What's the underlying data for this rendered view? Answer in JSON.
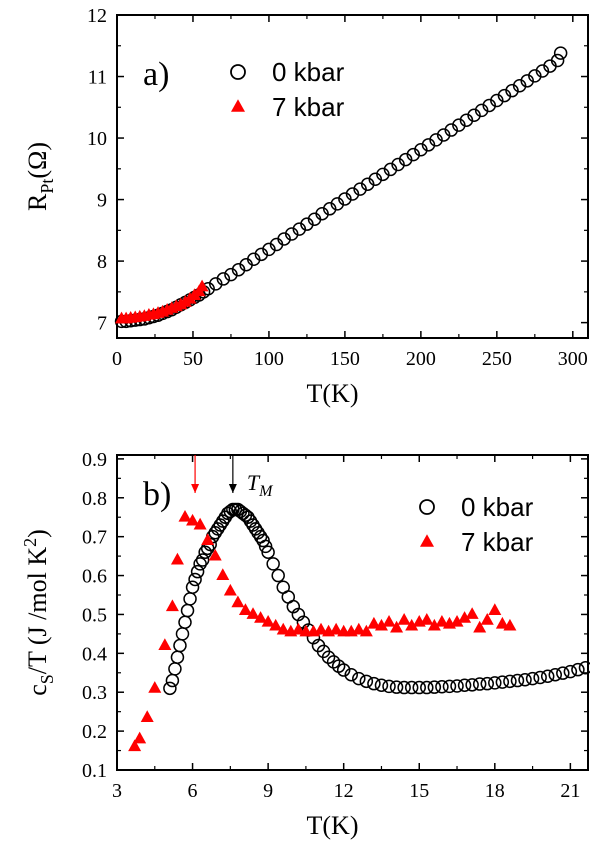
{
  "colors": {
    "black": "#000000",
    "red": "#ff0000"
  },
  "chart_data": [
    {
      "type": "scatter",
      "panel_label": "a)",
      "xlabel": "T(K)",
      "ylabel": {
        "main": "R",
        "sub": "Pt",
        "unit": "(Ω)"
      },
      "xlim": [
        0,
        310
      ],
      "ylim": [
        6.75,
        12
      ],
      "xticks": [
        0,
        50,
        100,
        150,
        200,
        250,
        300
      ],
      "yticks": [
        7,
        8,
        9,
        10,
        11,
        12
      ],
      "legend_placement": "top-left",
      "series": [
        {
          "name": "0 kbar",
          "marker": "circle",
          "color": "#000000",
          "points": [
            [
              3,
              7.02
            ],
            [
              6,
              7.02
            ],
            [
              9,
              7.03
            ],
            [
              12,
              7.04
            ],
            [
              15,
              7.05
            ],
            [
              18,
              7.06
            ],
            [
              21,
              7.08
            ],
            [
              24,
              7.1
            ],
            [
              27,
              7.12
            ],
            [
              30,
              7.15
            ],
            [
              33,
              7.18
            ],
            [
              36,
              7.21
            ],
            [
              39,
              7.25
            ],
            [
              42,
              7.29
            ],
            [
              45,
              7.33
            ],
            [
              48,
              7.37
            ],
            [
              51,
              7.41
            ],
            [
              54,
              7.45
            ],
            [
              57,
              7.5
            ],
            [
              60,
              7.55
            ],
            [
              65,
              7.63
            ],
            [
              70,
              7.71
            ],
            [
              75,
              7.78
            ],
            [
              80,
              7.86
            ],
            [
              85,
              7.94
            ],
            [
              90,
              8.03
            ],
            [
              95,
              8.11
            ],
            [
              100,
              8.19
            ],
            [
              105,
              8.27
            ],
            [
              110,
              8.36
            ],
            [
              115,
              8.44
            ],
            [
              120,
              8.52
            ],
            [
              125,
              8.6
            ],
            [
              130,
              8.68
            ],
            [
              135,
              8.77
            ],
            [
              140,
              8.85
            ],
            [
              145,
              8.93
            ],
            [
              150,
              9.01
            ],
            [
              155,
              9.09
            ],
            [
              160,
              9.17
            ],
            [
              165,
              9.25
            ],
            [
              170,
              9.33
            ],
            [
              175,
              9.41
            ],
            [
              180,
              9.49
            ],
            [
              185,
              9.57
            ],
            [
              190,
              9.65
            ],
            [
              195,
              9.73
            ],
            [
              200,
              9.81
            ],
            [
              205,
              9.89
            ],
            [
              210,
              9.97
            ],
            [
              215,
              10.05
            ],
            [
              220,
              10.13
            ],
            [
              225,
              10.21
            ],
            [
              230,
              10.29
            ],
            [
              235,
              10.37
            ],
            [
              240,
              10.45
            ],
            [
              245,
              10.53
            ],
            [
              250,
              10.61
            ],
            [
              255,
              10.69
            ],
            [
              260,
              10.77
            ],
            [
              265,
              10.85
            ],
            [
              270,
              10.93
            ],
            [
              275,
              11.01
            ],
            [
              280,
              11.09
            ],
            [
              285,
              11.17
            ],
            [
              290,
              11.26
            ],
            [
              292,
              11.38
            ]
          ]
        },
        {
          "name": "7 kbar",
          "marker": "triangle",
          "color": "#ff0000",
          "points": [
            [
              3,
              7.06
            ],
            [
              6,
              7.06
            ],
            [
              9,
              7.07
            ],
            [
              12,
              7.08
            ],
            [
              15,
              7.09
            ],
            [
              18,
              7.1
            ],
            [
              21,
              7.12
            ],
            [
              24,
              7.13
            ],
            [
              27,
              7.15
            ],
            [
              30,
              7.17
            ],
            [
              33,
              7.2
            ],
            [
              36,
              7.23
            ],
            [
              39,
              7.26
            ],
            [
              42,
              7.29
            ],
            [
              45,
              7.33
            ],
            [
              48,
              7.38
            ],
            [
              51,
              7.44
            ],
            [
              54,
              7.5
            ],
            [
              56,
              7.58
            ]
          ]
        }
      ]
    },
    {
      "type": "scatter",
      "panel_label": "b)",
      "xlabel": "T(K)",
      "ylabel": {
        "main": "c",
        "sub": "S",
        "unit": "/T (J /mol K",
        "sup": "2",
        "close": ")"
      },
      "xlim": [
        3,
        21.7
      ],
      "ylim": [
        0.1,
        0.91
      ],
      "xticks": [
        3,
        6,
        9,
        12,
        15,
        18,
        21
      ],
      "yticks": [
        0.1,
        0.2,
        0.3,
        0.4,
        0.5,
        0.6,
        0.7,
        0.8,
        0.9
      ],
      "legend_placement": "top-right",
      "annotations": [
        {
          "text": "T",
          "sub": "M",
          "x": 7.6,
          "color": "#000000"
        },
        {
          "text": "",
          "x": 6.1,
          "color": "#ff0000"
        }
      ],
      "series": [
        {
          "name": "0 kbar",
          "marker": "circle",
          "color": "#000000",
          "points": [
            [
              5.1,
              0.31
            ],
            [
              5.2,
              0.33
            ],
            [
              5.3,
              0.36
            ],
            [
              5.4,
              0.39
            ],
            [
              5.5,
              0.42
            ],
            [
              5.6,
              0.45
            ],
            [
              5.7,
              0.48
            ],
            [
              5.8,
              0.51
            ],
            [
              5.9,
              0.54
            ],
            [
              6.0,
              0.57
            ],
            [
              6.1,
              0.59
            ],
            [
              6.2,
              0.61
            ],
            [
              6.3,
              0.63
            ],
            [
              6.4,
              0.64
            ],
            [
              6.5,
              0.66
            ],
            [
              6.6,
              0.67
            ],
            [
              6.7,
              0.68
            ],
            [
              6.8,
              0.7
            ],
            [
              6.9,
              0.71
            ],
            [
              7.0,
              0.72
            ],
            [
              7.1,
              0.73
            ],
            [
              7.2,
              0.74
            ],
            [
              7.3,
              0.75
            ],
            [
              7.4,
              0.76
            ],
            [
              7.5,
              0.765
            ],
            [
              7.6,
              0.77
            ],
            [
              7.7,
              0.77
            ],
            [
              7.8,
              0.77
            ],
            [
              7.9,
              0.765
            ],
            [
              8.0,
              0.76
            ],
            [
              8.1,
              0.755
            ],
            [
              8.2,
              0.75
            ],
            [
              8.3,
              0.74
            ],
            [
              8.4,
              0.73
            ],
            [
              8.5,
              0.72
            ],
            [
              8.6,
              0.71
            ],
            [
              8.7,
              0.7
            ],
            [
              8.8,
              0.69
            ],
            [
              8.9,
              0.675
            ],
            [
              9.0,
              0.66
            ],
            [
              9.2,
              0.63
            ],
            [
              9.4,
              0.6
            ],
            [
              9.6,
              0.57
            ],
            [
              9.8,
              0.545
            ],
            [
              10.0,
              0.52
            ],
            [
              10.2,
              0.5
            ],
            [
              10.4,
              0.48
            ],
            [
              10.6,
              0.46
            ],
            [
              10.8,
              0.44
            ],
            [
              11.0,
              0.42
            ],
            [
              11.2,
              0.405
            ],
            [
              11.4,
              0.39
            ],
            [
              11.6,
              0.378
            ],
            [
              11.8,
              0.367
            ],
            [
              12.0,
              0.357
            ],
            [
              12.3,
              0.345
            ],
            [
              12.6,
              0.335
            ],
            [
              12.9,
              0.328
            ],
            [
              13.2,
              0.322
            ],
            [
              13.5,
              0.318
            ],
            [
              13.8,
              0.315
            ],
            [
              14.1,
              0.313
            ],
            [
              14.4,
              0.312
            ],
            [
              14.7,
              0.312
            ],
            [
              15.0,
              0.312
            ],
            [
              15.3,
              0.312
            ],
            [
              15.6,
              0.313
            ],
            [
              15.9,
              0.314
            ],
            [
              16.2,
              0.315
            ],
            [
              16.5,
              0.316
            ],
            [
              16.8,
              0.318
            ],
            [
              17.1,
              0.319
            ],
            [
              17.4,
              0.321
            ],
            [
              17.7,
              0.322
            ],
            [
              18.0,
              0.324
            ],
            [
              18.3,
              0.326
            ],
            [
              18.6,
              0.328
            ],
            [
              18.9,
              0.33
            ],
            [
              19.2,
              0.332
            ],
            [
              19.5,
              0.335
            ],
            [
              19.8,
              0.338
            ],
            [
              20.1,
              0.341
            ],
            [
              20.4,
              0.345
            ],
            [
              20.7,
              0.349
            ],
            [
              21.0,
              0.353
            ],
            [
              21.3,
              0.358
            ],
            [
              21.6,
              0.363
            ]
          ]
        },
        {
          "name": "7 kbar",
          "marker": "triangle",
          "color": "#ff0000",
          "points": [
            [
              3.7,
              0.16
            ],
            [
              3.9,
              0.18
            ],
            [
              4.2,
              0.235
            ],
            [
              4.5,
              0.31
            ],
            [
              4.9,
              0.42
            ],
            [
              5.2,
              0.52
            ],
            [
              5.4,
              0.64
            ],
            [
              5.7,
              0.75
            ],
            [
              6.0,
              0.74
            ],
            [
              6.3,
              0.73
            ],
            [
              6.6,
              0.69
            ],
            [
              6.9,
              0.65
            ],
            [
              7.2,
              0.6
            ],
            [
              7.5,
              0.56
            ],
            [
              7.8,
              0.53
            ],
            [
              8.1,
              0.51
            ],
            [
              8.4,
              0.5
            ],
            [
              8.7,
              0.49
            ],
            [
              9.0,
              0.48
            ],
            [
              9.3,
              0.47
            ],
            [
              9.6,
              0.46
            ],
            [
              9.9,
              0.455
            ],
            [
              10.2,
              0.46
            ],
            [
              10.5,
              0.455
            ],
            [
              10.8,
              0.455
            ],
            [
              11.1,
              0.46
            ],
            [
              11.4,
              0.455
            ],
            [
              11.7,
              0.46
            ],
            [
              12.0,
              0.455
            ],
            [
              12.3,
              0.455
            ],
            [
              12.6,
              0.46
            ],
            [
              12.9,
              0.455
            ],
            [
              13.2,
              0.475
            ],
            [
              13.5,
              0.47
            ],
            [
              13.8,
              0.48
            ],
            [
              14.1,
              0.465
            ],
            [
              14.4,
              0.485
            ],
            [
              14.7,
              0.47
            ],
            [
              15.0,
              0.48
            ],
            [
              15.3,
              0.485
            ],
            [
              15.6,
              0.47
            ],
            [
              15.9,
              0.48
            ],
            [
              16.2,
              0.475
            ],
            [
              16.5,
              0.48
            ],
            [
              16.8,
              0.49
            ],
            [
              17.1,
              0.5
            ],
            [
              17.4,
              0.465
            ],
            [
              17.7,
              0.485
            ],
            [
              18.0,
              0.51
            ],
            [
              18.3,
              0.475
            ],
            [
              18.6,
              0.47
            ]
          ]
        }
      ]
    }
  ]
}
